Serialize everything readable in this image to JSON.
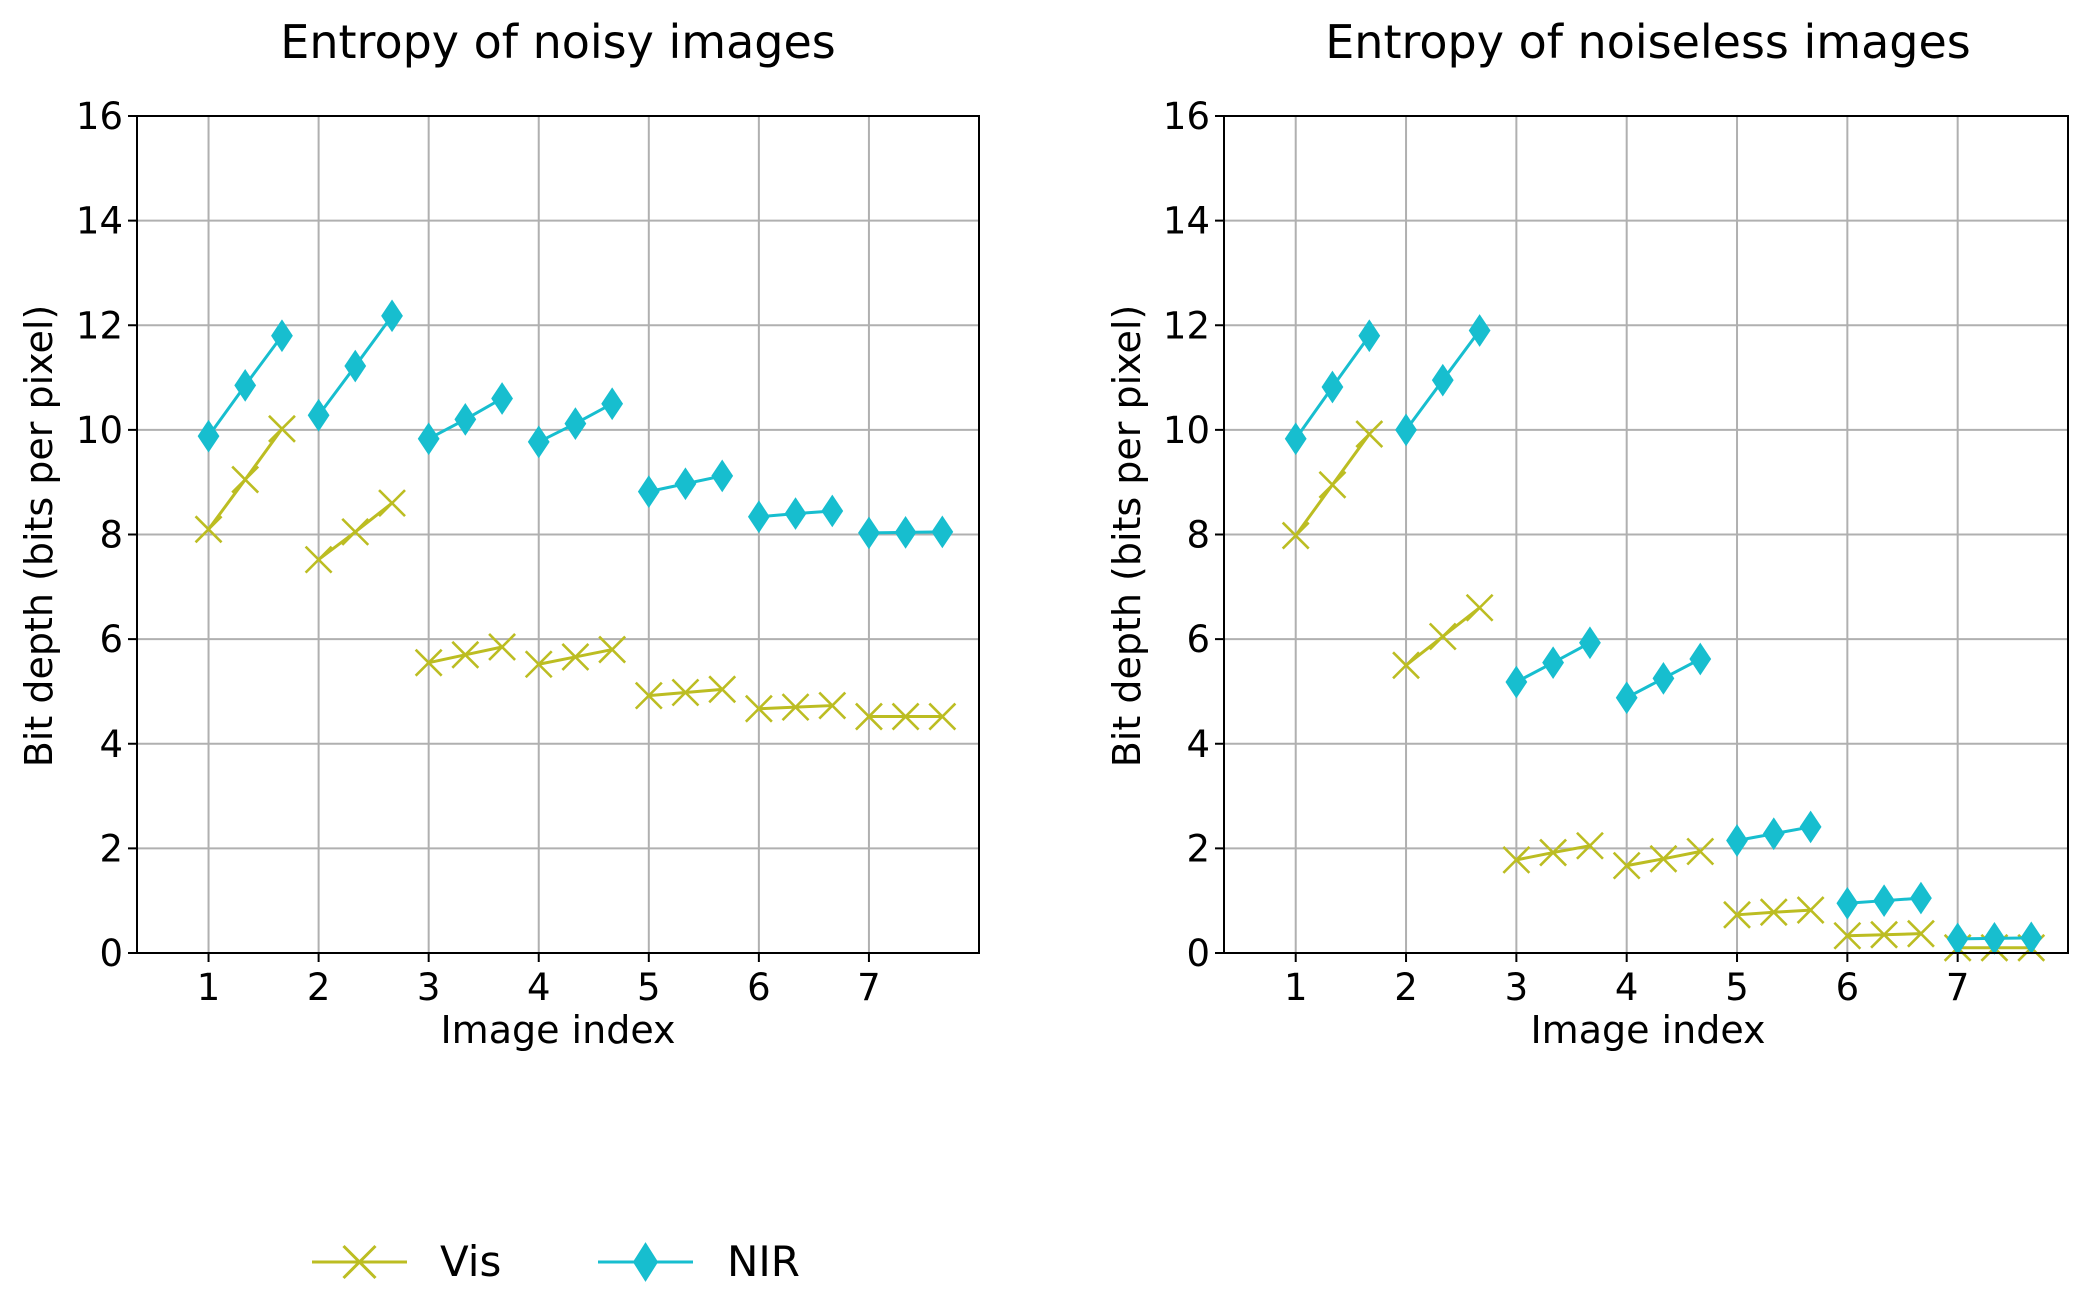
{
  "chart_data": [
    {
      "type": "line",
      "title": "Entropy of noisy images",
      "xlabel": "Image index",
      "ylabel": "Bit depth (bits per pixel)",
      "xlim": [
        0.35,
        8.0
      ],
      "ylim": [
        0,
        16
      ],
      "xticks": [
        1,
        2,
        3,
        4,
        5,
        6,
        7
      ],
      "xtick_labels": [
        "1",
        "2",
        "3",
        "4",
        "5",
        "6",
        "7"
      ],
      "yticks": [
        0,
        2,
        4,
        6,
        8,
        10,
        12,
        14,
        16
      ],
      "ytick_labels": [
        "0",
        "2",
        "4",
        "6",
        "8",
        "10",
        "12",
        "14",
        "16"
      ],
      "grid": true,
      "series": [
        {
          "name": "Vis",
          "color": "#bcbd22",
          "marker": "x",
          "segments": [
            {
              "x": [
                1.0,
                1.333,
                1.667
              ],
              "y": [
                8.1,
                9.05,
                10.02
              ]
            },
            {
              "x": [
                2.0,
                2.333,
                2.667
              ],
              "y": [
                7.52,
                8.05,
                8.6
              ]
            },
            {
              "x": [
                3.0,
                3.333,
                3.667
              ],
              "y": [
                5.55,
                5.7,
                5.85
              ]
            },
            {
              "x": [
                4.0,
                4.333,
                4.667
              ],
              "y": [
                5.52,
                5.66,
                5.8
              ]
            },
            {
              "x": [
                5.0,
                5.333,
                5.667
              ],
              "y": [
                4.92,
                4.98,
                5.04
              ]
            },
            {
              "x": [
                6.0,
                6.333,
                6.667
              ],
              "y": [
                4.67,
                4.7,
                4.73
              ]
            },
            {
              "x": [
                7.0,
                7.333,
                7.667
              ],
              "y": [
                4.52,
                4.52,
                4.52
              ]
            }
          ]
        },
        {
          "name": "NIR",
          "color": "#17becf",
          "marker": "d",
          "segments": [
            {
              "x": [
                1.0,
                1.333,
                1.667
              ],
              "y": [
                9.88,
                10.85,
                11.8
              ]
            },
            {
              "x": [
                2.0,
                2.333,
                2.667
              ],
              "y": [
                10.28,
                11.22,
                12.18
              ]
            },
            {
              "x": [
                3.0,
                3.333,
                3.667
              ],
              "y": [
                9.83,
                10.2,
                10.6
              ]
            },
            {
              "x": [
                4.0,
                4.333,
                4.667
              ],
              "y": [
                9.77,
                10.12,
                10.5
              ]
            },
            {
              "x": [
                5.0,
                5.333,
                5.667
              ],
              "y": [
                8.82,
                8.97,
                9.12
              ]
            },
            {
              "x": [
                6.0,
                6.333,
                6.667
              ],
              "y": [
                8.34,
                8.4,
                8.45
              ]
            },
            {
              "x": [
                7.0,
                7.333,
                7.667
              ],
              "y": [
                8.03,
                8.04,
                8.05
              ]
            }
          ]
        }
      ]
    },
    {
      "type": "line",
      "title": "Entropy of noiseless images",
      "xlabel": "Image index",
      "ylabel": "Bit depth (bits per pixel)",
      "xlim": [
        0.35,
        8.0
      ],
      "ylim": [
        0,
        16
      ],
      "xticks": [
        1,
        2,
        3,
        4,
        5,
        6,
        7
      ],
      "xtick_labels": [
        "1",
        "2",
        "3",
        "4",
        "5",
        "6",
        "7"
      ],
      "yticks": [
        0,
        2,
        4,
        6,
        8,
        10,
        12,
        14,
        16
      ],
      "ytick_labels": [
        "0",
        "2",
        "4",
        "6",
        "8",
        "10",
        "12",
        "14",
        "16"
      ],
      "grid": true,
      "series": [
        {
          "name": "Vis",
          "color": "#bcbd22",
          "marker": "x",
          "segments": [
            {
              "x": [
                1.0,
                1.333,
                1.667
              ],
              "y": [
                7.98,
                8.95,
                9.92
              ]
            },
            {
              "x": [
                2.0,
                2.333,
                2.667
              ],
              "y": [
                5.5,
                6.05,
                6.6
              ]
            },
            {
              "x": [
                3.0,
                3.333,
                3.667
              ],
              "y": [
                1.78,
                1.92,
                2.05
              ]
            },
            {
              "x": [
                4.0,
                4.333,
                4.667
              ],
              "y": [
                1.67,
                1.8,
                1.94
              ]
            },
            {
              "x": [
                5.0,
                5.333,
                5.667
              ],
              "y": [
                0.73,
                0.78,
                0.82
              ]
            },
            {
              "x": [
                6.0,
                6.333,
                6.667
              ],
              "y": [
                0.33,
                0.35,
                0.37
              ]
            },
            {
              "x": [
                7.0,
                7.333,
                7.667
              ],
              "y": [
                0.1,
                0.1,
                0.1
              ]
            }
          ]
        },
        {
          "name": "NIR",
          "color": "#17becf",
          "marker": "d",
          "segments": [
            {
              "x": [
                1.0,
                1.333,
                1.667
              ],
              "y": [
                9.83,
                10.82,
                11.8
              ]
            },
            {
              "x": [
                2.0,
                2.333,
                2.667
              ],
              "y": [
                10.0,
                10.95,
                11.9
              ]
            },
            {
              "x": [
                3.0,
                3.333,
                3.667
              ],
              "y": [
                5.18,
                5.55,
                5.93
              ]
            },
            {
              "x": [
                4.0,
                4.333,
                4.667
              ],
              "y": [
                4.88,
                5.25,
                5.62
              ]
            },
            {
              "x": [
                5.0,
                5.333,
                5.667
              ],
              "y": [
                2.15,
                2.28,
                2.41
              ]
            },
            {
              "x": [
                6.0,
                6.333,
                6.667
              ],
              "y": [
                0.95,
                1.0,
                1.05
              ]
            },
            {
              "x": [
                7.0,
                7.333,
                7.667
              ],
              "y": [
                0.27,
                0.28,
                0.29
              ]
            }
          ]
        }
      ]
    }
  ],
  "legend": {
    "placement": "bottom-center",
    "entries": [
      {
        "label": "Vis",
        "color": "#bcbd22",
        "marker": "x"
      },
      {
        "label": "NIR",
        "color": "#17becf",
        "marker": "d"
      }
    ]
  }
}
